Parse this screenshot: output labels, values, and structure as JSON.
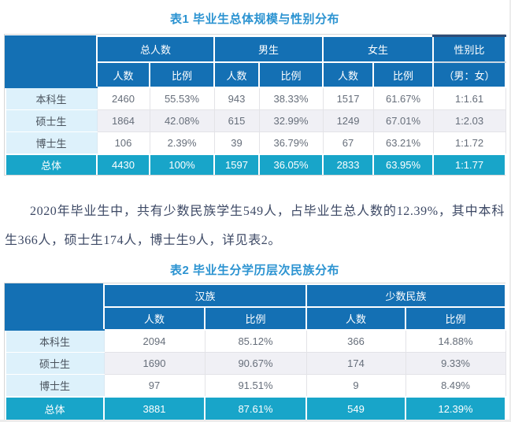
{
  "colors": {
    "header_blue": "#1470b4",
    "total_row_teal": "#18a5c9",
    "label_column_blue": "#ddf1fb",
    "alt_row_gray": "#f0f0f5",
    "title_blue": "#2b93d1",
    "paragraph_text": "#3d4965"
  },
  "table1": {
    "title": "表1 毕业生总体规模与性别分布",
    "group_headers": [
      "总人数",
      "男生",
      "女生",
      "性别比"
    ],
    "sub_headers": [
      "人数",
      "比例",
      "人数",
      "比例",
      "人数",
      "比例",
      "（男：女）"
    ],
    "rows": [
      [
        "本科生",
        "2460",
        "55.53%",
        "943",
        "38.33%",
        "1517",
        "61.67%",
        "1:1.61"
      ],
      [
        "硕士生",
        "1864",
        "42.08%",
        "615",
        "32.99%",
        "1249",
        "67.01%",
        "1:2.03"
      ],
      [
        "博士生",
        "106",
        "2.39%",
        "39",
        "36.79%",
        "67",
        "63.21%",
        "1:1.72"
      ],
      [
        "总体",
        "4430",
        "100%",
        "1597",
        "36.05%",
        "2833",
        "63.95%",
        "1:1.77"
      ]
    ]
  },
  "paragraph": "2020年毕业生中，共有少数民族学生549人，占毕业生总人数的12.39%，其中本科生366人，硕士生174人，博士生9人，详见表2。",
  "table2": {
    "title": "表2 毕业生分学历层次民族分布",
    "group_headers": [
      "汉族",
      "少数民族"
    ],
    "sub_headers": [
      "人数",
      "比例",
      "人数",
      "比例"
    ],
    "rows": [
      [
        "本科生",
        "2094",
        "85.12%",
        "366",
        "14.88%"
      ],
      [
        "硕士生",
        "1690",
        "90.67%",
        "174",
        "9.33%"
      ],
      [
        "博士生",
        "97",
        "91.51%",
        "9",
        "8.49%"
      ],
      [
        "总体",
        "3881",
        "87.61%",
        "549",
        "12.39%"
      ]
    ]
  }
}
